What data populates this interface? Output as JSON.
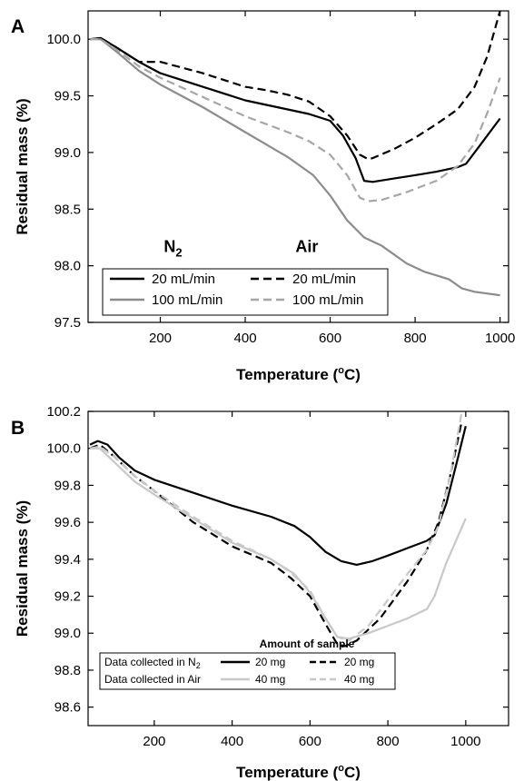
{
  "chart_data": [
    {
      "type": "line",
      "panel_label": "A",
      "xlabel": "Temperature (°C)",
      "ylabel": "Residual mass (%)",
      "xlim": [
        30,
        1020
      ],
      "ylim": [
        97.5,
        100.25
      ],
      "xticks": [
        200,
        400,
        600,
        800,
        1000
      ],
      "yticks": [
        97.5,
        98.0,
        98.5,
        99.0,
        99.5,
        100.0
      ],
      "annotations": [
        {
          "text": "N",
          "sub": "2",
          "x": 230,
          "y": 98.12
        },
        {
          "text": "Air",
          "sub": "",
          "x": 545,
          "y": 98.12
        }
      ],
      "legend_position": "bottom-left",
      "series": [
        {
          "name": "20 mL/min",
          "color": "#000000",
          "dash": "solid",
          "x": [
            35,
            60,
            100,
            150,
            200,
            300,
            400,
            500,
            550,
            600,
            630,
            660,
            680,
            700,
            750,
            800,
            850,
            900,
            920,
            950,
            1000
          ],
          "y": [
            100.0,
            100.01,
            99.92,
            99.8,
            99.7,
            99.58,
            99.46,
            99.38,
            99.34,
            99.28,
            99.15,
            98.95,
            98.75,
            98.74,
            98.77,
            98.8,
            98.83,
            98.87,
            98.9,
            99.05,
            99.3
          ]
        },
        {
          "name": "20 mL/min",
          "color": "#000000",
          "dash": "dashed",
          "x": [
            35,
            60,
            100,
            150,
            200,
            300,
            400,
            450,
            500,
            550,
            600,
            640,
            670,
            690,
            700,
            750,
            800,
            850,
            900,
            940,
            970,
            1000
          ],
          "y": [
            100.0,
            100.01,
            99.92,
            99.8,
            99.8,
            99.7,
            99.58,
            99.55,
            99.51,
            99.45,
            99.32,
            99.15,
            98.98,
            98.94,
            98.95,
            99.03,
            99.13,
            99.25,
            99.38,
            99.58,
            99.85,
            100.25
          ]
        },
        {
          "name": "100 mL/min",
          "color": "#8c8c8c",
          "dash": "solid",
          "x": [
            35,
            60,
            100,
            150,
            200,
            300,
            400,
            500,
            560,
            600,
            640,
            680,
            720,
            780,
            820,
            880,
            910,
            940,
            1000
          ],
          "y": [
            100.0,
            100.0,
            99.88,
            99.72,
            99.6,
            99.4,
            99.18,
            98.96,
            98.8,
            98.62,
            98.4,
            98.25,
            98.18,
            98.02,
            97.95,
            97.88,
            97.8,
            97.77,
            97.74
          ]
        },
        {
          "name": "100 mL/min",
          "color": "#a6a6a6",
          "dash": "dashed",
          "x": [
            35,
            60,
            100,
            150,
            200,
            300,
            400,
            500,
            550,
            600,
            640,
            670,
            690,
            720,
            780,
            850,
            900,
            940,
            970,
            1000
          ],
          "y": [
            100.0,
            100.0,
            99.9,
            99.76,
            99.66,
            99.49,
            99.32,
            99.18,
            99.1,
            98.98,
            98.8,
            98.6,
            98.57,
            98.58,
            98.65,
            98.75,
            98.88,
            99.08,
            99.35,
            99.66
          ]
        }
      ]
    },
    {
      "type": "line",
      "panel_label": "B",
      "xlabel": "Temperature (°C)",
      "ylabel": "Residual mass (%)",
      "xlim": [
        30,
        1110
      ],
      "ylim": [
        98.5,
        100.2
      ],
      "xticks": [
        200,
        400,
        600,
        800,
        1000
      ],
      "yticks": [
        98.6,
        98.8,
        99.0,
        99.2,
        99.4,
        99.6,
        99.8,
        100.0,
        100.2
      ],
      "legend_title": "Amount of sample",
      "legend_rows": [
        {
          "label": "Data collected in N",
          "sub": "2"
        },
        {
          "label": "Data collected in Air",
          "sub": ""
        }
      ],
      "legend_position": "bottom-center",
      "series": [
        {
          "name": "20 mg",
          "color": "#000000",
          "dash": "solid",
          "x": [
            35,
            55,
            80,
            110,
            150,
            200,
            300,
            400,
            500,
            560,
            600,
            640,
            680,
            700,
            720,
            760,
            800,
            850,
            900,
            920,
            950,
            980,
            1000
          ],
          "y": [
            100.02,
            100.04,
            100.02,
            99.95,
            99.88,
            99.83,
            99.76,
            99.69,
            99.63,
            99.58,
            99.52,
            99.44,
            99.39,
            99.38,
            99.37,
            99.39,
            99.42,
            99.46,
            99.5,
            99.53,
            99.7,
            99.95,
            100.12
          ]
        },
        {
          "name": "20 mg",
          "color": "#000000",
          "dash": "dashed",
          "x": [
            35,
            60,
            100,
            150,
            200,
            300,
            400,
            500,
            550,
            600,
            640,
            670,
            690,
            720,
            780,
            850,
            900,
            930,
            960,
            990
          ],
          "y": [
            100.0,
            100.02,
            99.95,
            99.85,
            99.77,
            99.6,
            99.47,
            99.38,
            99.3,
            99.2,
            99.05,
            98.94,
            98.93,
            98.96,
            99.08,
            99.28,
            99.45,
            99.6,
            99.85,
            100.15
          ]
        },
        {
          "name": "40 mg",
          "color": "#c8c8c8",
          "dash": "solid",
          "x": [
            35,
            60,
            100,
            150,
            200,
            300,
            400,
            500,
            560,
            600,
            640,
            670,
            700,
            750,
            800,
            850,
            880,
            900,
            920,
            950,
            1000
          ],
          "y": [
            100.0,
            100.0,
            99.92,
            99.82,
            99.75,
            99.62,
            99.49,
            99.4,
            99.32,
            99.22,
            99.08,
            98.98,
            98.97,
            99.0,
            99.04,
            99.08,
            99.11,
            99.13,
            99.2,
            99.38,
            99.62
          ]
        },
        {
          "name": "40 mg",
          "color": "#c8c8c8",
          "dash": "dashed",
          "x": [
            35,
            60,
            100,
            150,
            200,
            300,
            400,
            500,
            550,
            600,
            640,
            670,
            700,
            750,
            800,
            850,
            900,
            930,
            960,
            990
          ],
          "y": [
            100.0,
            100.01,
            99.95,
            99.85,
            99.77,
            99.63,
            99.5,
            99.4,
            99.33,
            99.23,
            99.08,
            98.98,
            98.96,
            99.04,
            99.18,
            99.32,
            99.45,
            99.58,
            99.85,
            100.2
          ]
        }
      ]
    }
  ]
}
